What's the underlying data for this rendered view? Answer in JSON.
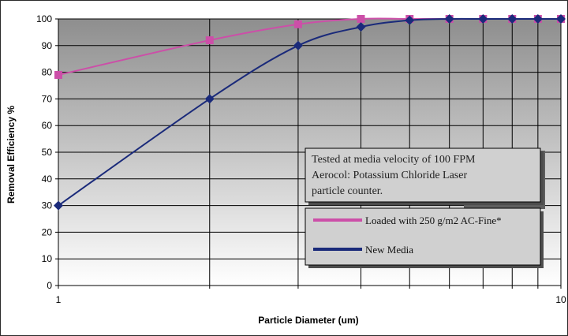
{
  "chart_data": {
    "type": "line",
    "xlabel": "Particle Diameter (um)",
    "ylabel": "Removal Efficiency %",
    "x_scale": "log",
    "xlim": [
      1,
      10
    ],
    "ylim": [
      0,
      100
    ],
    "x_ticks": [
      "1",
      "10"
    ],
    "y_ticks": [
      "0",
      "10",
      "20",
      "30",
      "40",
      "50",
      "60",
      "70",
      "80",
      "90",
      "100"
    ],
    "grid": true,
    "background": "gradient gray",
    "x": [
      1,
      2,
      3,
      4,
      5,
      6,
      7,
      8,
      9,
      10
    ],
    "series": [
      {
        "name": "Loaded with 250 g/m2 AC-Fine*",
        "color": "#cc4fa8",
        "marker": "square",
        "values": [
          79,
          92,
          98,
          100,
          100,
          100,
          100,
          100,
          100,
          100
        ]
      },
      {
        "name": "New Media",
        "color": "#1a2a7a",
        "marker": "diamond",
        "values": [
          30,
          70,
          90,
          97,
          99.5,
          100,
          100,
          100,
          100,
          100
        ]
      }
    ],
    "annotation": [
      "Tested at media velocity of 100 FPM",
      "Aerocol: Potassium Chloride Laser",
      "particle counter."
    ],
    "legend_position": "lower-right"
  }
}
